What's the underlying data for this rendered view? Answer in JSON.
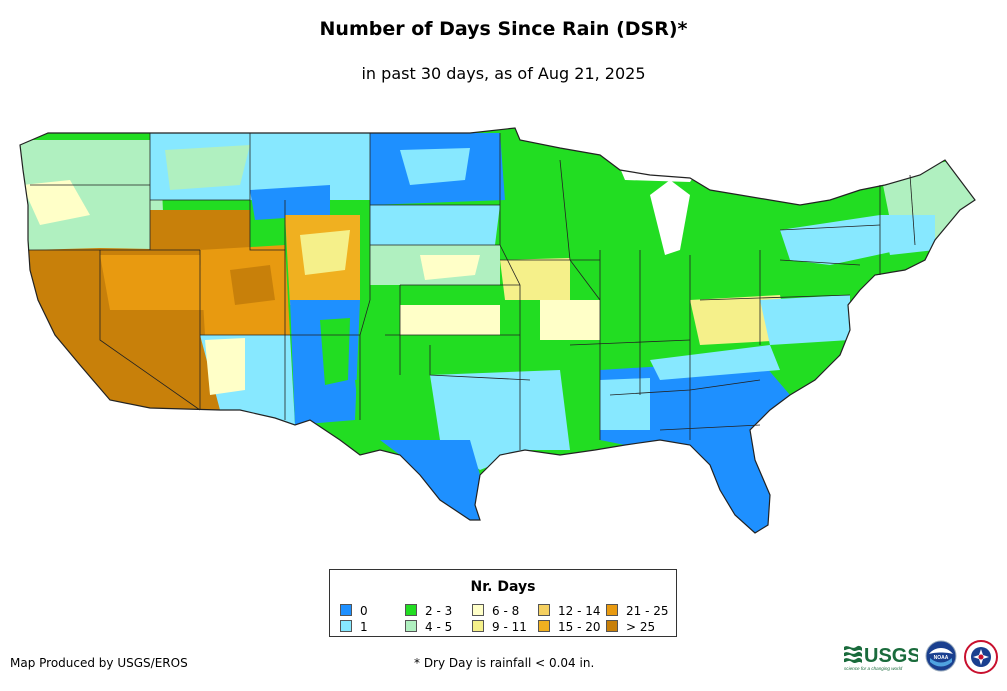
{
  "header": {
    "title": "Number of Days Since Rain (DSR)*",
    "subtitle": "in past 30 days, as of Aug 21, 2025"
  },
  "legend": {
    "title": "Nr. Days",
    "items": [
      {
        "label": "0",
        "color": "#1e90ff"
      },
      {
        "label": "1",
        "color": "#87e8ff"
      },
      {
        "label": "2 - 3",
        "color": "#22dd22"
      },
      {
        "label": "4 - 5",
        "color": "#b0f0c0"
      },
      {
        "label": "6 - 8",
        "color": "#ffffc8"
      },
      {
        "label": "9 - 11",
        "color": "#f5f08a"
      },
      {
        "label": "12 - 14",
        "color": "#f5d060"
      },
      {
        "label": "15 - 20",
        "color": "#f0b020"
      },
      {
        "label": "21 - 25",
        "color": "#e89a10"
      },
      {
        "label": "> 25",
        "color": "#c8800a"
      }
    ]
  },
  "footer": {
    "credit": "Map Produced by USGS/EROS",
    "footnote": "* Dry Day is rainfall < 0.04 in."
  },
  "logos": {
    "usgs_text": "USGS",
    "usgs_tagline": "science for a changing world",
    "noaa_text": "NOAA"
  }
}
